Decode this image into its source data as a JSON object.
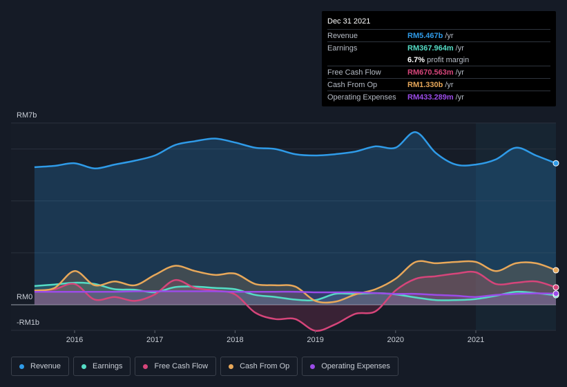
{
  "tooltip": {
    "date": "Dec 31 2021",
    "rows": [
      {
        "label": "Revenue",
        "value": "RM5.467b",
        "unit": "/yr",
        "color": "#2f9be8"
      },
      {
        "label": "Earnings",
        "value": "RM367.964m",
        "unit": "/yr",
        "color": "#55dcc5"
      },
      {
        "label": "",
        "value": "6.7%",
        "unit": "profit margin",
        "color": "#ffffff"
      },
      {
        "label": "Free Cash Flow",
        "value": "RM670.563m",
        "unit": "/yr",
        "color": "#d6457a"
      },
      {
        "label": "Cash From Op",
        "value": "RM1.330b",
        "unit": "/yr",
        "color": "#e8a85a"
      },
      {
        "label": "Operating Expenses",
        "value": "RM433.289m",
        "unit": "/yr",
        "color": "#9b4ce8"
      }
    ]
  },
  "chart_data": {
    "type": "area",
    "y_labels": {
      "top": "RM7b",
      "zero": "RM0",
      "bottom": "-RM1b"
    },
    "ylim": [
      -1,
      7
    ],
    "xlim": [
      2015.5,
      2022.0
    ],
    "x_ticks": [
      "2016",
      "2017",
      "2018",
      "2019",
      "2020",
      "2021"
    ],
    "x_tick_values": [
      2016,
      2017,
      2018,
      2019,
      2020,
      2021
    ],
    "forecast_start": 2021.0,
    "units": "RM billions",
    "series": [
      {
        "name": "Revenue",
        "color": "#2f9be8",
        "x": [
          2015.5,
          2015.75,
          2016.0,
          2016.25,
          2016.5,
          2016.75,
          2017.0,
          2017.25,
          2017.5,
          2017.75,
          2018.0,
          2018.25,
          2018.5,
          2018.75,
          2019.0,
          2019.25,
          2019.5,
          2019.75,
          2020.0,
          2020.25,
          2020.5,
          2020.75,
          2021.0,
          2021.25,
          2021.5,
          2021.75,
          2022.0
        ],
        "y": [
          5.3,
          5.35,
          5.45,
          5.25,
          5.4,
          5.55,
          5.75,
          6.15,
          6.3,
          6.4,
          6.25,
          6.05,
          6.0,
          5.8,
          5.75,
          5.8,
          5.9,
          6.1,
          6.05,
          6.65,
          5.85,
          5.4,
          5.4,
          5.6,
          6.05,
          5.75,
          5.45
        ]
      },
      {
        "name": "Earnings",
        "color": "#55dcc5",
        "x": [
          2015.5,
          2015.75,
          2016.0,
          2016.25,
          2016.5,
          2016.75,
          2017.0,
          2017.25,
          2017.5,
          2017.75,
          2018.0,
          2018.25,
          2018.5,
          2018.75,
          2019.0,
          2019.25,
          2019.5,
          2019.75,
          2020.0,
          2020.25,
          2020.5,
          2020.75,
          2021.0,
          2021.25,
          2021.5,
          2021.75,
          2022.0
        ],
        "y": [
          0.72,
          0.78,
          0.85,
          0.8,
          0.6,
          0.58,
          0.48,
          0.68,
          0.7,
          0.65,
          0.6,
          0.38,
          0.3,
          0.2,
          0.18,
          0.42,
          0.42,
          0.45,
          0.4,
          0.28,
          0.18,
          0.18,
          0.22,
          0.35,
          0.5,
          0.45,
          0.37
        ]
      },
      {
        "name": "Free Cash Flow",
        "color": "#d6457a",
        "x": [
          2015.5,
          2015.75,
          2016.0,
          2016.25,
          2016.5,
          2016.75,
          2017.0,
          2017.25,
          2017.5,
          2017.75,
          2018.0,
          2018.25,
          2018.5,
          2018.75,
          2019.0,
          2019.25,
          2019.5,
          2019.75,
          2020.0,
          2020.25,
          2020.5,
          2020.75,
          2021.0,
          2021.25,
          2021.5,
          2021.75,
          2022.0
        ],
        "y": [
          0.55,
          0.6,
          0.8,
          0.2,
          0.3,
          0.15,
          0.4,
          0.95,
          0.65,
          0.55,
          0.4,
          -0.3,
          -0.55,
          -0.55,
          -1.0,
          -0.75,
          -0.35,
          -0.25,
          0.55,
          1.0,
          1.1,
          1.2,
          1.25,
          0.8,
          0.85,
          0.9,
          0.67
        ]
      },
      {
        "name": "Cash From Op",
        "color": "#e8a85a",
        "x": [
          2015.5,
          2015.75,
          2016.0,
          2016.25,
          2016.5,
          2016.75,
          2017.0,
          2017.25,
          2017.5,
          2017.75,
          2018.0,
          2018.25,
          2018.5,
          2018.75,
          2019.0,
          2019.25,
          2019.5,
          2019.75,
          2020.0,
          2020.25,
          2020.5,
          2020.75,
          2021.0,
          2021.25,
          2021.5,
          2021.75,
          2022.0
        ],
        "y": [
          0.55,
          0.65,
          1.3,
          0.75,
          0.9,
          0.75,
          1.15,
          1.5,
          1.3,
          1.15,
          1.2,
          0.8,
          0.75,
          0.7,
          0.15,
          0.12,
          0.4,
          0.6,
          1.0,
          1.65,
          1.6,
          1.65,
          1.65,
          1.3,
          1.6,
          1.6,
          1.33
        ]
      },
      {
        "name": "Operating Expenses",
        "color": "#9b4ce8",
        "x": [
          2015.5,
          2015.75,
          2016.0,
          2016.25,
          2016.5,
          2016.75,
          2017.0,
          2017.25,
          2017.5,
          2017.75,
          2018.0,
          2018.25,
          2018.5,
          2018.75,
          2019.0,
          2019.25,
          2019.5,
          2019.75,
          2020.0,
          2020.25,
          2020.5,
          2020.75,
          2021.0,
          2021.25,
          2021.5,
          2021.75,
          2022.0
        ],
        "y": [
          0.5,
          0.5,
          0.5,
          0.5,
          0.5,
          0.52,
          0.52,
          0.52,
          0.52,
          0.52,
          0.5,
          0.5,
          0.5,
          0.5,
          0.48,
          0.48,
          0.48,
          0.45,
          0.42,
          0.42,
          0.38,
          0.35,
          0.3,
          0.38,
          0.42,
          0.44,
          0.43
        ]
      }
    ]
  },
  "legend": [
    {
      "label": "Revenue",
      "color": "#2f9be8"
    },
    {
      "label": "Earnings",
      "color": "#55dcc5"
    },
    {
      "label": "Free Cash Flow",
      "color": "#d6457a"
    },
    {
      "label": "Cash From Op",
      "color": "#e8a85a"
    },
    {
      "label": "Operating Expenses",
      "color": "#9b4ce8"
    }
  ]
}
